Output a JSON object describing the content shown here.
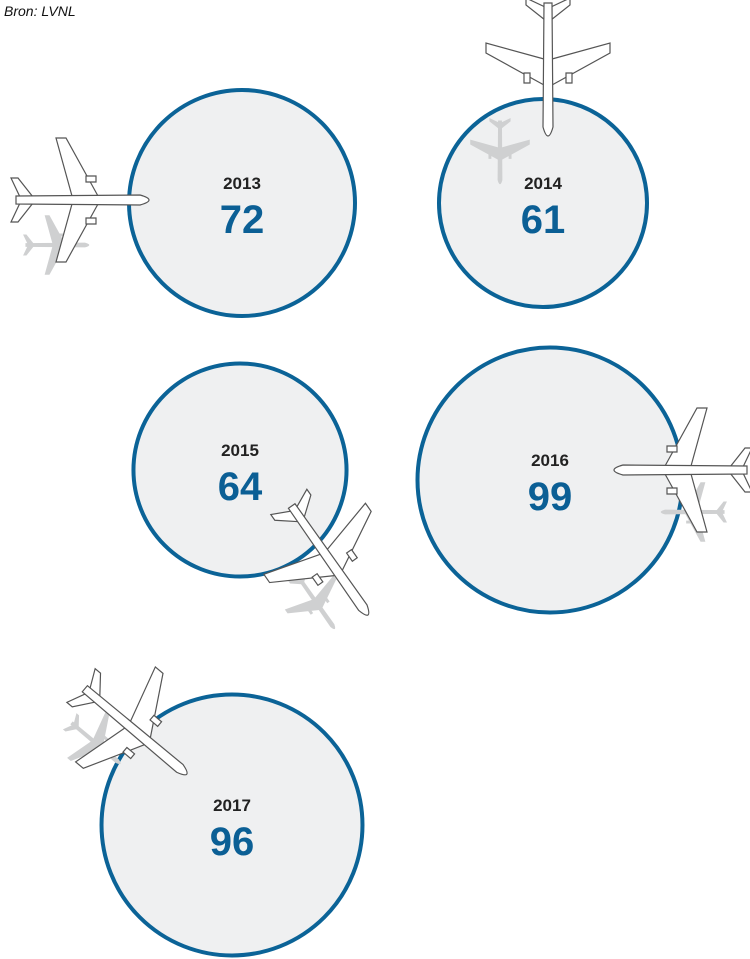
{
  "chart_data": {
    "type": "bubble",
    "source": "Bron: LVNL",
    "categories": [
      "2013",
      "2014",
      "2015",
      "2016",
      "2017"
    ],
    "values": [
      72,
      61,
      64,
      99,
      96
    ]
  }
}
